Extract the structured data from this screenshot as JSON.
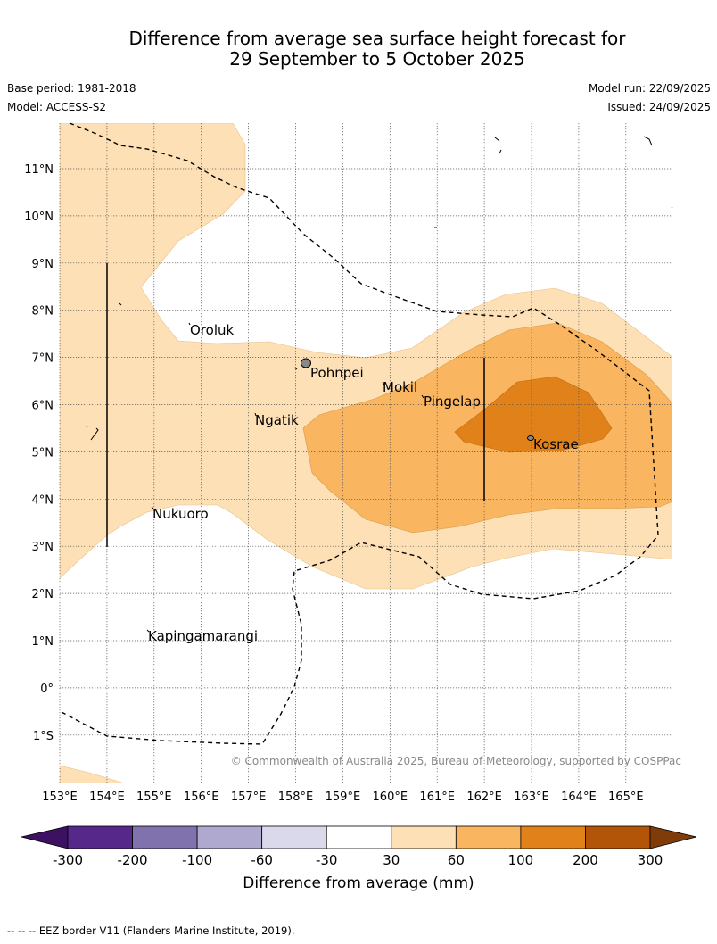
{
  "header": {
    "title_line1": "Difference from average sea surface height forecast for",
    "title_line2": "29 September to 5 October 2025",
    "base_period": "Base period: 1981-2018",
    "model": "Model: ACCESS-S2",
    "model_run": "Model run: 22/09/2025",
    "issued": "Issued: 24/09/2025"
  },
  "axes": {
    "lat_labels": [
      "11°N",
      "10°N",
      "9°N",
      "8°N",
      "7°N",
      "6°N",
      "5°N",
      "4°N",
      "3°N",
      "2°N",
      "1°N",
      "0°",
      "1°S"
    ],
    "lon_labels": [
      "153°E",
      "154°E",
      "155°E",
      "156°E",
      "157°E",
      "158°E",
      "159°E",
      "160°E",
      "161°E",
      "162°E",
      "163°E",
      "164°E",
      "165°E"
    ]
  },
  "places": [
    {
      "name": "Oroluk"
    },
    {
      "name": "Pohnpei"
    },
    {
      "name": "Mokil"
    },
    {
      "name": "Pingelap"
    },
    {
      "name": "Ngatik"
    },
    {
      "name": "Kosrae"
    },
    {
      "name": "Nukuoro"
    },
    {
      "name": "Kapingamarangi"
    }
  ],
  "copyright": "© Commonwealth of Australia 2025, Bureau of Meteorology, supported by COSPPac",
  "colorbar": {
    "label": "Difference from average (mm)",
    "ticks": [
      "-300",
      "-200",
      "-100",
      "-60",
      "-30",
      "30",
      "60",
      "100",
      "200",
      "300"
    ],
    "colors": [
      "#3d1162",
      "#55288a",
      "#8073ad",
      "#b0a9cf",
      "#d9d9eb",
      "#ffffff",
      "#fde0b5",
      "#f9b560",
      "#e0811a",
      "#b25508",
      "#7f3b08"
    ]
  },
  "footer": "--  --  -- EEZ border V11 (Flanders Marine Institute, 2019)."
}
